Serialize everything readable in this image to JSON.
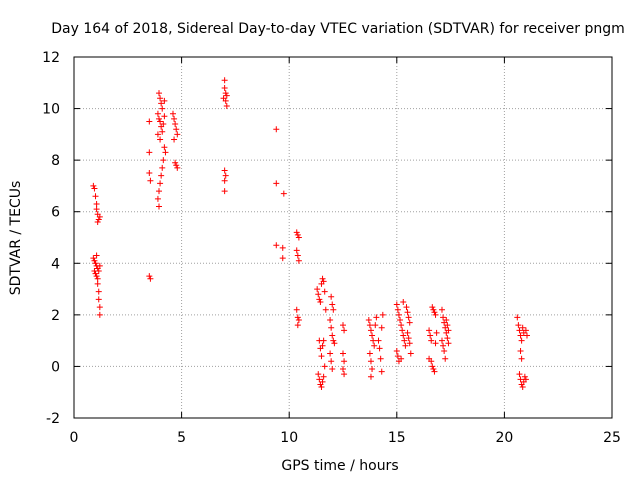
{
  "chart_data": {
    "type": "scatter",
    "title": "Day 164 of 2018, Sidereal Day-to-day VTEC variation (SDTVAR) for receiver pngm",
    "xlabel": "GPS time / hours",
    "ylabel": "SDTVAR / TECUs",
    "xlim": [
      0,
      25
    ],
    "ylim": [
      -2,
      12
    ],
    "x_ticks": [
      0,
      5,
      10,
      15,
      20,
      25
    ],
    "y_ticks": [
      -2,
      0,
      2,
      4,
      6,
      8,
      10,
      12
    ],
    "x_tick_labels": [
      "0",
      "5",
      "10",
      "15",
      "20",
      "25"
    ],
    "y_tick_labels": [
      "-2",
      "0",
      "2",
      "4",
      "6",
      "8",
      "10",
      "12"
    ],
    "grid": true,
    "marker": "+",
    "marker_color": "#ff0000",
    "series": [
      {
        "name": "SDTVAR",
        "points": [
          [
            0.9,
            7.0
          ],
          [
            0.95,
            6.9
          ],
          [
            1.0,
            6.6
          ],
          [
            1.05,
            6.3
          ],
          [
            1.05,
            6.1
          ],
          [
            1.1,
            5.9
          ],
          [
            1.15,
            5.7
          ],
          [
            1.2,
            5.8
          ],
          [
            1.1,
            5.6
          ],
          [
            0.9,
            4.2
          ],
          [
            0.95,
            4.1
          ],
          [
            1.0,
            4.0
          ],
          [
            1.05,
            3.9
          ],
          [
            1.1,
            3.8
          ],
          [
            0.95,
            3.7
          ],
          [
            1.0,
            3.6
          ],
          [
            1.05,
            3.5
          ],
          [
            1.15,
            3.7
          ],
          [
            1.2,
            3.9
          ],
          [
            1.1,
            3.4
          ],
          [
            1.1,
            3.2
          ],
          [
            1.15,
            2.9
          ],
          [
            1.15,
            2.6
          ],
          [
            1.2,
            2.3
          ],
          [
            1.2,
            2.0
          ],
          [
            1.05,
            4.3
          ],
          [
            3.5,
            9.5
          ],
          [
            3.5,
            8.3
          ],
          [
            3.5,
            7.5
          ],
          [
            3.55,
            7.2
          ],
          [
            3.5,
            3.5
          ],
          [
            3.55,
            3.4
          ],
          [
            3.95,
            10.6
          ],
          [
            4.0,
            10.4
          ],
          [
            4.05,
            10.2
          ],
          [
            4.1,
            10.0
          ],
          [
            3.9,
            9.8
          ],
          [
            3.95,
            9.6
          ],
          [
            4.0,
            9.5
          ],
          [
            4.05,
            9.3
          ],
          [
            4.1,
            9.1
          ],
          [
            4.15,
            9.4
          ],
          [
            4.2,
            9.7
          ],
          [
            3.9,
            9.0
          ],
          [
            4.0,
            8.8
          ],
          [
            4.2,
            8.5
          ],
          [
            4.25,
            8.3
          ],
          [
            4.15,
            8.0
          ],
          [
            4.1,
            7.7
          ],
          [
            4.05,
            7.4
          ],
          [
            4.0,
            7.1
          ],
          [
            3.95,
            6.8
          ],
          [
            3.9,
            6.5
          ],
          [
            3.95,
            6.2
          ],
          [
            4.2,
            10.3
          ],
          [
            4.6,
            9.8
          ],
          [
            4.65,
            9.6
          ],
          [
            4.7,
            9.4
          ],
          [
            4.75,
            9.2
          ],
          [
            4.8,
            9.0
          ],
          [
            4.65,
            8.8
          ],
          [
            4.7,
            7.9
          ],
          [
            4.75,
            7.8
          ],
          [
            4.8,
            7.7
          ],
          [
            7.0,
            11.1
          ],
          [
            7.0,
            10.8
          ],
          [
            7.05,
            10.6
          ],
          [
            7.1,
            10.5
          ],
          [
            6.95,
            10.4
          ],
          [
            7.05,
            10.3
          ],
          [
            7.1,
            10.1
          ],
          [
            7.0,
            7.6
          ],
          [
            7.05,
            7.4
          ],
          [
            7.0,
            7.2
          ],
          [
            7.0,
            6.8
          ],
          [
            9.4,
            9.2
          ],
          [
            9.4,
            7.1
          ],
          [
            9.4,
            4.7
          ],
          [
            9.7,
            4.6
          ],
          [
            9.7,
            4.2
          ],
          [
            9.75,
            6.7
          ],
          [
            10.35,
            5.2
          ],
          [
            10.4,
            5.1
          ],
          [
            10.45,
            5.0
          ],
          [
            10.35,
            4.5
          ],
          [
            10.4,
            4.3
          ],
          [
            10.45,
            4.1
          ],
          [
            10.35,
            2.2
          ],
          [
            10.4,
            1.9
          ],
          [
            10.45,
            1.8
          ],
          [
            10.4,
            1.6
          ],
          [
            11.3,
            3.0
          ],
          [
            11.35,
            2.8
          ],
          [
            11.4,
            2.6
          ],
          [
            11.45,
            2.5
          ],
          [
            11.5,
            3.2
          ],
          [
            11.55,
            3.4
          ],
          [
            11.6,
            3.3
          ],
          [
            11.65,
            2.9
          ],
          [
            11.7,
            2.2
          ],
          [
            11.4,
            1.0
          ],
          [
            11.45,
            0.7
          ],
          [
            11.5,
            0.4
          ],
          [
            11.55,
            0.8
          ],
          [
            11.6,
            1.0
          ],
          [
            11.35,
            -0.3
          ],
          [
            11.4,
            -0.5
          ],
          [
            11.45,
            -0.7
          ],
          [
            11.5,
            -0.8
          ],
          [
            11.55,
            -0.6
          ],
          [
            11.6,
            -0.4
          ],
          [
            11.65,
            0.0
          ],
          [
            11.95,
            2.7
          ],
          [
            12.0,
            2.4
          ],
          [
            12.05,
            2.2
          ],
          [
            11.9,
            1.8
          ],
          [
            11.95,
            1.5
          ],
          [
            12.0,
            1.2
          ],
          [
            12.05,
            1.0
          ],
          [
            12.1,
            0.9
          ],
          [
            11.9,
            0.5
          ],
          [
            11.95,
            0.2
          ],
          [
            12.0,
            -0.1
          ],
          [
            12.5,
            1.6
          ],
          [
            12.55,
            1.4
          ],
          [
            12.5,
            0.5
          ],
          [
            12.55,
            0.2
          ],
          [
            12.5,
            -0.1
          ],
          [
            12.55,
            -0.3
          ],
          [
            13.7,
            1.8
          ],
          [
            13.75,
            1.6
          ],
          [
            13.8,
            1.4
          ],
          [
            13.85,
            1.2
          ],
          [
            13.9,
            1.0
          ],
          [
            13.95,
            0.8
          ],
          [
            14.0,
            1.6
          ],
          [
            14.05,
            1.9
          ],
          [
            13.75,
            0.5
          ],
          [
            13.8,
            0.2
          ],
          [
            13.85,
            -0.1
          ],
          [
            13.8,
            -0.4
          ],
          [
            14.15,
            1.0
          ],
          [
            14.2,
            0.7
          ],
          [
            14.25,
            0.3
          ],
          [
            14.3,
            -0.2
          ],
          [
            14.3,
            1.5
          ],
          [
            14.35,
            2.0
          ],
          [
            15.0,
            2.4
          ],
          [
            15.05,
            2.2
          ],
          [
            15.1,
            2.0
          ],
          [
            15.15,
            1.8
          ],
          [
            15.2,
            1.6
          ],
          [
            15.25,
            1.4
          ],
          [
            15.3,
            1.2
          ],
          [
            15.35,
            1.0
          ],
          [
            15.4,
            0.8
          ],
          [
            15.0,
            0.6
          ],
          [
            15.05,
            0.4
          ],
          [
            15.1,
            0.2
          ],
          [
            15.45,
            2.3
          ],
          [
            15.5,
            2.1
          ],
          [
            15.55,
            1.9
          ],
          [
            15.6,
            1.7
          ],
          [
            15.5,
            1.3
          ],
          [
            15.55,
            1.1
          ],
          [
            15.6,
            0.9
          ],
          [
            15.65,
            0.5
          ],
          [
            15.2,
            0.3
          ],
          [
            15.3,
            2.5
          ],
          [
            16.5,
            1.4
          ],
          [
            16.55,
            1.2
          ],
          [
            16.6,
            1.0
          ],
          [
            16.65,
            2.3
          ],
          [
            16.7,
            2.2
          ],
          [
            16.75,
            2.1
          ],
          [
            16.8,
            2.0
          ],
          [
            16.6,
            0.2
          ],
          [
            16.65,
            0.0
          ],
          [
            16.7,
            -0.1
          ],
          [
            16.75,
            -0.2
          ],
          [
            16.8,
            0.9
          ],
          [
            16.85,
            1.3
          ],
          [
            16.5,
            0.3
          ],
          [
            17.1,
            2.2
          ],
          [
            17.15,
            1.9
          ],
          [
            17.2,
            1.7
          ],
          [
            17.25,
            1.5
          ],
          [
            17.3,
            1.3
          ],
          [
            17.35,
            1.1
          ],
          [
            17.4,
            0.9
          ],
          [
            17.2,
            0.6
          ],
          [
            17.25,
            0.3
          ],
          [
            17.3,
            1.8
          ],
          [
            17.35,
            1.6
          ],
          [
            17.4,
            1.4
          ],
          [
            17.15,
            0.8
          ],
          [
            17.1,
            1.0
          ],
          [
            20.6,
            1.9
          ],
          [
            20.65,
            1.6
          ],
          [
            20.7,
            1.4
          ],
          [
            20.75,
            1.2
          ],
          [
            20.8,
            1.0
          ],
          [
            20.85,
            1.5
          ],
          [
            20.9,
            1.3
          ],
          [
            21.0,
            1.4
          ],
          [
            21.05,
            1.2
          ],
          [
            20.75,
            0.6
          ],
          [
            20.8,
            0.3
          ],
          [
            20.7,
            -0.3
          ],
          [
            20.75,
            -0.5
          ],
          [
            20.8,
            -0.7
          ],
          [
            20.85,
            -0.8
          ],
          [
            20.9,
            -0.6
          ],
          [
            20.95,
            -0.4
          ],
          [
            21.0,
            -0.5
          ]
        ]
      }
    ]
  }
}
